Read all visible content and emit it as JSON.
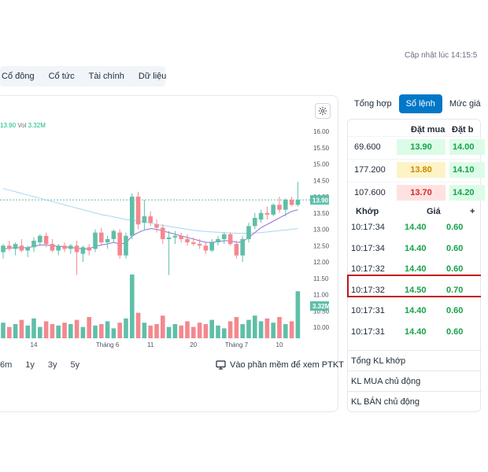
{
  "header": {
    "updated_text": "Cập nhật lúc 14:15:5"
  },
  "tabs": [
    "Cổ đông",
    "Cổ tức",
    "Tài chính",
    "Dữ liệu"
  ],
  "legend": {
    "close_value": "13.90",
    "vol_label": "Vol",
    "vol_value": "3.32M"
  },
  "chart_data": {
    "type": "candlestick",
    "y_ticks": [
      "16.00",
      "15.50",
      "15.00",
      "14.50",
      "14.00",
      "13.50",
      "13.00",
      "12.50",
      "12.00",
      "11.50",
      "11.00",
      "10.50",
      "10.00"
    ],
    "ylim": [
      10.0,
      16.0
    ],
    "x_ticks": [
      "14",
      "Tháng 6",
      "11",
      "20",
      "Tháng 7",
      "10"
    ],
    "last_price_tag": "13.90",
    "last_price": 13.9,
    "volume_tag": "3.32M",
    "candles": [
      {
        "o": 12.3,
        "h": 12.55,
        "l": 12.1,
        "c": 12.5
      },
      {
        "o": 12.5,
        "h": 12.65,
        "l": 12.35,
        "c": 12.4
      },
      {
        "o": 12.4,
        "h": 12.6,
        "l": 12.2,
        "c": 12.55
      },
      {
        "o": 12.5,
        "h": 12.7,
        "l": 12.3,
        "c": 12.35
      },
      {
        "o": 12.35,
        "h": 12.5,
        "l": 12.15,
        "c": 12.45
      },
      {
        "o": 12.45,
        "h": 12.75,
        "l": 12.3,
        "c": 12.65
      },
      {
        "o": 12.6,
        "h": 12.85,
        "l": 12.5,
        "c": 12.8
      },
      {
        "o": 12.8,
        "h": 12.9,
        "l": 12.45,
        "c": 12.55
      },
      {
        "o": 12.55,
        "h": 12.7,
        "l": 12.3,
        "c": 12.35
      },
      {
        "o": 12.35,
        "h": 12.55,
        "l": 12.2,
        "c": 12.5
      },
      {
        "o": 12.5,
        "h": 12.6,
        "l": 12.3,
        "c": 12.4
      },
      {
        "o": 12.4,
        "h": 12.55,
        "l": 12.25,
        "c": 12.5
      },
      {
        "o": 12.5,
        "h": 12.65,
        "l": 11.6,
        "c": 12.3
      },
      {
        "o": 12.25,
        "h": 12.5,
        "l": 12.0,
        "c": 12.45
      },
      {
        "o": 12.45,
        "h": 12.55,
        "l": 12.2,
        "c": 12.35
      },
      {
        "o": 12.4,
        "h": 13.0,
        "l": 12.3,
        "c": 12.9
      },
      {
        "o": 12.9,
        "h": 13.05,
        "l": 12.5,
        "c": 12.6
      },
      {
        "o": 12.6,
        "h": 12.8,
        "l": 12.4,
        "c": 12.7
      },
      {
        "o": 12.7,
        "h": 13.0,
        "l": 12.6,
        "c": 12.95
      },
      {
        "o": 12.9,
        "h": 13.0,
        "l": 12.1,
        "c": 12.2
      },
      {
        "o": 12.2,
        "h": 12.9,
        "l": 12.1,
        "c": 12.8
      },
      {
        "o": 12.8,
        "h": 14.1,
        "l": 12.7,
        "c": 14.0
      },
      {
        "o": 14.0,
        "h": 14.15,
        "l": 13.0,
        "c": 13.15
      },
      {
        "o": 13.2,
        "h": 13.9,
        "l": 13.0,
        "c": 13.4
      },
      {
        "o": 13.4,
        "h": 13.55,
        "l": 13.1,
        "c": 13.2
      },
      {
        "o": 13.15,
        "h": 13.3,
        "l": 12.9,
        "c": 13.05
      },
      {
        "o": 13.05,
        "h": 13.15,
        "l": 12.55,
        "c": 12.7
      },
      {
        "o": 12.7,
        "h": 12.95,
        "l": 11.6,
        "c": 12.75
      },
      {
        "o": 12.75,
        "h": 12.95,
        "l": 12.55,
        "c": 12.8
      },
      {
        "o": 12.8,
        "h": 12.9,
        "l": 12.6,
        "c": 12.7
      },
      {
        "o": 12.7,
        "h": 12.85,
        "l": 12.5,
        "c": 12.6
      },
      {
        "o": 12.6,
        "h": 12.75,
        "l": 12.5,
        "c": 12.55
      },
      {
        "o": 12.55,
        "h": 12.7,
        "l": 12.4,
        "c": 12.5
      },
      {
        "o": 12.5,
        "h": 12.6,
        "l": 12.25,
        "c": 12.35
      },
      {
        "o": 12.35,
        "h": 12.7,
        "l": 12.3,
        "c": 12.6
      },
      {
        "o": 12.6,
        "h": 12.8,
        "l": 12.5,
        "c": 12.7
      },
      {
        "o": 12.7,
        "h": 12.9,
        "l": 12.55,
        "c": 12.85
      },
      {
        "o": 12.85,
        "h": 12.9,
        "l": 12.5,
        "c": 12.55
      },
      {
        "o": 12.55,
        "h": 12.65,
        "l": 12.1,
        "c": 12.2
      },
      {
        "o": 12.2,
        "h": 12.8,
        "l": 12.0,
        "c": 12.7
      },
      {
        "o": 12.7,
        "h": 13.2,
        "l": 12.6,
        "c": 13.1
      },
      {
        "o": 13.1,
        "h": 13.5,
        "l": 13.0,
        "c": 13.35
      },
      {
        "o": 13.3,
        "h": 13.6,
        "l": 13.2,
        "c": 13.5
      },
      {
        "o": 13.5,
        "h": 13.7,
        "l": 13.3,
        "c": 13.45
      },
      {
        "o": 13.45,
        "h": 13.8,
        "l": 13.4,
        "c": 13.75
      },
      {
        "o": 13.75,
        "h": 14.0,
        "l": 13.5,
        "c": 13.6
      },
      {
        "o": 13.6,
        "h": 13.95,
        "l": 13.4,
        "c": 13.9
      },
      {
        "o": 13.9,
        "h": 14.0,
        "l": 13.7,
        "c": 13.75
      },
      {
        "o": 13.75,
        "h": 14.45,
        "l": 13.7,
        "c": 13.9
      }
    ],
    "volumes": [
      1.1,
      0.8,
      1.0,
      1.3,
      0.9,
      1.4,
      0.8,
      1.2,
      1.0,
      0.9,
      1.1,
      1.0,
      1.3,
      0.8,
      1.5,
      0.9,
      1.0,
      1.2,
      0.7,
      1.1,
      1.4,
      4.5,
      1.8,
      1.1,
      0.9,
      1.0,
      1.6,
      0.8,
      1.0,
      0.9,
      1.2,
      0.8,
      1.1,
      1.0,
      1.3,
      0.9,
      0.7,
      1.2,
      1.5,
      1.0,
      1.3,
      1.6,
      1.2,
      1.4,
      1.1,
      1.5,
      1.0,
      1.2,
      3.32
    ],
    "ma_fast": [
      12.4,
      12.42,
      12.44,
      12.43,
      12.44,
      12.48,
      12.52,
      12.52,
      12.5,
      12.48,
      12.46,
      12.45,
      12.42,
      12.4,
      12.4,
      12.48,
      12.52,
      12.55,
      12.6,
      12.55,
      12.58,
      12.8,
      12.9,
      12.98,
      13.02,
      13.0,
      12.95,
      12.9,
      12.85,
      12.8,
      12.75,
      12.7,
      12.65,
      12.6,
      12.6,
      12.62,
      12.65,
      12.65,
      12.6,
      12.62,
      12.75,
      12.9,
      13.05,
      13.15,
      13.25,
      13.35,
      13.45,
      13.55,
      13.6
    ],
    "ma_slow": [
      14.25,
      14.2,
      14.15,
      14.1,
      14.05,
      14.0,
      13.95,
      13.9,
      13.85,
      13.8,
      13.75,
      13.7,
      13.65,
      13.6,
      13.55,
      13.5,
      13.45,
      13.42,
      13.38,
      13.34,
      13.3,
      13.28,
      13.25,
      13.22,
      13.19,
      13.15,
      13.12,
      13.09,
      13.06,
      13.03,
      13.0,
      12.97,
      12.95,
      12.93,
      12.92,
      12.91,
      12.9,
      12.89,
      12.88,
      12.88,
      12.88,
      12.89,
      12.9,
      12.92,
      12.94,
      12.96,
      12.98,
      13.0,
      13.02
    ]
  },
  "ranges": [
    "6m",
    "1y",
    "3y",
    "5y"
  ],
  "ptkt_text": "Vào phần mềm để xem PTKT",
  "right_tabs": [
    "Tổng hợp",
    "Sổ lệnh",
    "Mức giá"
  ],
  "orderbook": {
    "head_buy": "Đặt mua",
    "head_sell": "Đặt b",
    "rows": [
      {
        "vol": "69.600",
        "bid": "13.90",
        "ask": "14.00",
        "bid_color": "#16a34a",
        "bid_bg": "#dcfce7"
      },
      {
        "vol": "177.200",
        "bid": "13.80",
        "ask": "14.10",
        "bid_color": "#ca8a04",
        "bid_bg": "#fef3c7"
      },
      {
        "vol": "107.600",
        "bid": "13.70",
        "ask": "14.20",
        "bid_color": "#dc2626",
        "bid_bg": "#fee2e2"
      }
    ]
  },
  "trades": {
    "head_time": "Khớp",
    "head_price": "Giá",
    "head_extra": "+",
    "rows": [
      {
        "time": "10:17:34",
        "price": "14.40",
        "qty": "0.60"
      },
      {
        "time": "10:17:34",
        "price": "14.40",
        "qty": "0.60"
      },
      {
        "time": "10:17:32",
        "price": "14.40",
        "qty": "0.60"
      },
      {
        "time": "10:17:32",
        "price": "14.50",
        "qty": "0.70"
      },
      {
        "time": "10:17:31",
        "price": "14.40",
        "qty": "0.60"
      },
      {
        "time": "10:17:31",
        "price": "14.40",
        "qty": "0.60"
      }
    ]
  },
  "summary": [
    "Tổng KL khớp",
    "KL MUA chủ động",
    "KL BÁN chủ động"
  ],
  "colors": {
    "up": "#5fbfa9",
    "down": "#f4888f",
    "accent": "#0077c8",
    "highlight": "#c2151b"
  }
}
